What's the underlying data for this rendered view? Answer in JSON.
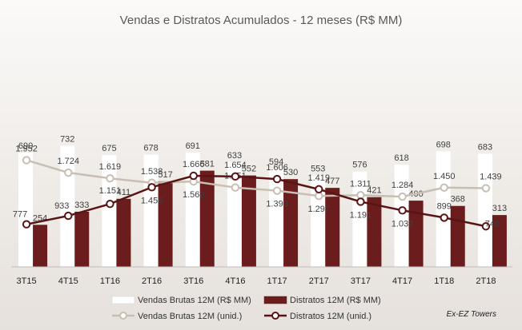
{
  "chart_data": {
    "type": "bar",
    "title": "Vendas e Distratos Acumulados - 12 meses (R$ MM)",
    "categories": [
      "3T15",
      "4T15",
      "1T16",
      "2T16",
      "3T16",
      "4T16",
      "1T17",
      "2T17",
      "3T17",
      "4T17",
      "1T18",
      "2T18"
    ],
    "series": [
      {
        "name": "Vendas Brutas 12M (R$ MM)",
        "kind": "bar",
        "color": "#ffffff",
        "values": [
          690,
          732,
          675,
          678,
          691,
          633,
          594,
          553,
          576,
          618,
          698,
          683
        ]
      },
      {
        "name": "Distratos 12M (R$ MM)",
        "kind": "bar",
        "color": "#6b1c1c",
        "values": [
          254,
          333,
          411,
          517,
          581,
          552,
          530,
          477,
          421,
          400,
          368,
          313
        ]
      },
      {
        "name": "Vendas Brutas 12M (unid.)",
        "kind": "line",
        "color": "#c8bfb3",
        "values": [
          1952,
          1724,
          1619,
          1538,
          1562,
          1451,
          1393,
          1297,
          1311,
          1284,
          1450,
          1439
        ],
        "labels": [
          "1.952",
          "1.724",
          "1.619",
          "1.538",
          "1.562",
          "1.451",
          "1.393",
          "1.297",
          "1.311",
          "1.284",
          "1.450",
          "1.439"
        ]
      },
      {
        "name": "Distratos 12M (unid.)",
        "kind": "line",
        "color": "#5a1414",
        "values": [
          777,
          933,
          1151,
          1456,
          1666,
          1654,
          1606,
          1419,
          1191,
          1032,
          899,
          740
        ],
        "labels": [
          "777",
          "933",
          "1.151",
          "1.456",
          "1.666",
          "1.654",
          "1.606",
          "1.419",
          "1.191",
          "1.032",
          "899",
          "740"
        ]
      }
    ],
    "bar_ylim": [
      0,
      800
    ],
    "line_ylim": [
      0,
      2300
    ],
    "grid": false,
    "legend_position": "bottom",
    "note": "Ex-EZ Towers"
  }
}
